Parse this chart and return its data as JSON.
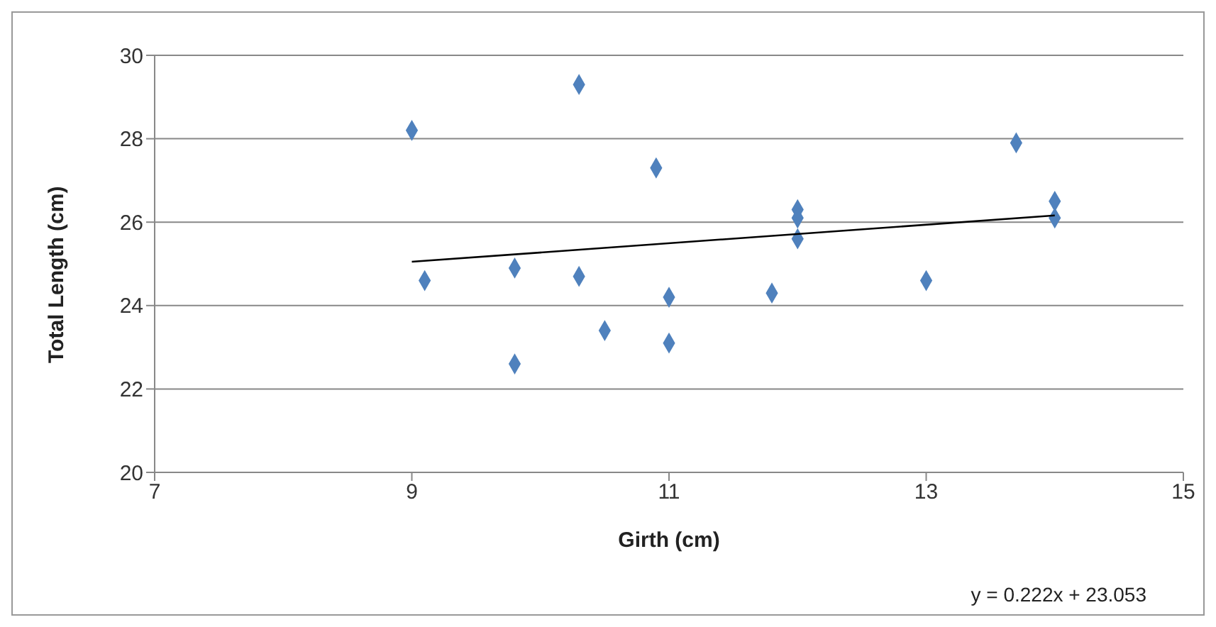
{
  "chart_data": {
    "type": "scatter",
    "xlabel": "Girth (cm)",
    "ylabel": "Total Length (cm)",
    "xlim": [
      7,
      15
    ],
    "xticks": [
      7,
      9,
      11,
      13,
      15
    ],
    "ylim": [
      20,
      30
    ],
    "yticks": [
      20,
      22,
      24,
      26,
      28,
      30
    ],
    "grid": "y",
    "marker": "diamond",
    "series": [
      {
        "color": "#4f81bd",
        "x": [
          9.0,
          9.1,
          9.8,
          9.8,
          10.3,
          10.3,
          10.5,
          10.9,
          11.0,
          11.0,
          11.8,
          12.0,
          12.0,
          12.0,
          13.0,
          13.7,
          14.0,
          14.0
        ],
        "values": [
          28.2,
          24.6,
          24.9,
          22.6,
          29.3,
          24.7,
          23.4,
          27.3,
          24.2,
          23.1,
          24.3,
          26.3,
          26.1,
          25.6,
          24.6,
          27.9,
          26.5,
          26.1
        ]
      },
      {
        "type": "line",
        "color": "#000000",
        "marker": "none",
        "line_style": "solid",
        "x": [
          9,
          14
        ],
        "values": [
          25.05,
          26.16
        ]
      }
    ],
    "annotations": [
      "y = 0.222x + 23.053"
    ]
  }
}
